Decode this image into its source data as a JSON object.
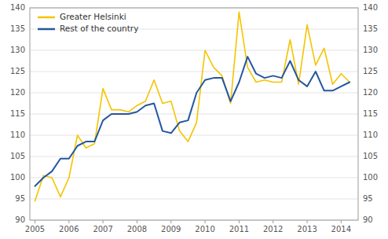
{
  "chart_data": {
    "type": "line",
    "x": [
      2005,
      2005.25,
      2005.5,
      2005.75,
      2006,
      2006.25,
      2006.5,
      2006.75,
      2007,
      2007.25,
      2007.5,
      2007.75,
      2008,
      2008.25,
      2008.5,
      2008.75,
      2009,
      2009.25,
      2009.5,
      2009.75,
      2010,
      2010.25,
      2010.5,
      2010.75,
      2011,
      2011.25,
      2011.5,
      2011.75,
      2012,
      2012.25,
      2012.5,
      2012.75,
      2013,
      2013.25,
      2013.5,
      2013.75,
      2014,
      2014.25
    ],
    "series": [
      {
        "name": "Greater Helsinki",
        "color": "#f5c400",
        "values": [
          94.5,
          100.5,
          100.0,
          95.5,
          100.0,
          110.0,
          107.0,
          108.0,
          121.0,
          116.0,
          116.0,
          115.5,
          117.0,
          118.0,
          123.0,
          117.5,
          118.0,
          111.0,
          108.5,
          113.0,
          130.0,
          126.0,
          124.0,
          117.5,
          139.0,
          126.0,
          122.5,
          123.0,
          122.5,
          122.5,
          132.5,
          122.0,
          136.0,
          126.5,
          130.5,
          122.0,
          124.5,
          122.5
        ]
      },
      {
        "name": "Rest of the country",
        "color": "#2457a0",
        "values": [
          98.0,
          100.0,
          101.5,
          104.5,
          104.5,
          107.5,
          108.5,
          108.5,
          113.5,
          115.0,
          115.0,
          115.0,
          115.5,
          117.0,
          117.5,
          111.0,
          110.5,
          113.0,
          113.5,
          120.0,
          123.0,
          123.5,
          123.5,
          118.0,
          122.5,
          128.5,
          124.5,
          123.5,
          124.0,
          123.5,
          127.5,
          123.0,
          121.5,
          125.0,
          120.5,
          120.5,
          121.5,
          122.5
        ]
      }
    ],
    "xlim": [
      2004.85,
      2014.5
    ],
    "xticks": [
      2005,
      2006,
      2007,
      2008,
      2009,
      2010,
      2011,
      2012,
      2013,
      2014
    ],
    "ylim": [
      90,
      140
    ],
    "yticks": [
      90,
      95,
      100,
      105,
      110,
      115,
      120,
      125,
      130,
      135,
      140
    ],
    "y2lim": [
      90,
      140
    ],
    "y2ticks": [
      90,
      95,
      100,
      105,
      110,
      115,
      120,
      125,
      130,
      135,
      140
    ],
    "grid": true,
    "legend": "upper left"
  }
}
